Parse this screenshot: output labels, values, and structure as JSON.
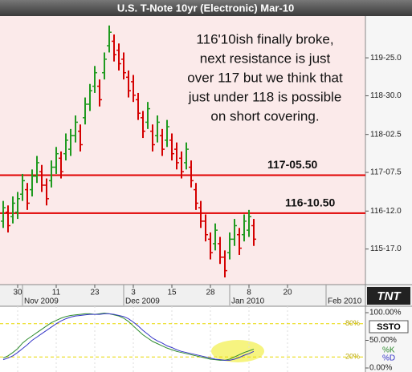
{
  "chart_data": [
    {
      "type": "ohlc",
      "title": "U.S. T-Note 10yr (Electronic) Mar-10",
      "x": [
        "2009-10-27",
        "2009-10-28",
        "2009-10-29",
        "2009-10-30",
        "2009-11-02",
        "2009-11-03",
        "2009-11-04",
        "2009-11-05",
        "2009-11-06",
        "2009-11-09",
        "2009-11-10",
        "2009-11-11",
        "2009-11-12",
        "2009-11-13",
        "2009-11-16",
        "2009-11-17",
        "2009-11-18",
        "2009-11-19",
        "2009-11-20",
        "2009-11-23",
        "2009-11-24",
        "2009-11-25",
        "2009-11-26",
        "2009-11-27",
        "2009-11-30",
        "2009-12-01",
        "2009-12-02",
        "2009-12-03",
        "2009-12-04",
        "2009-12-07",
        "2009-12-08",
        "2009-12-09",
        "2009-12-10",
        "2009-12-11",
        "2009-12-14",
        "2009-12-15",
        "2009-12-16",
        "2009-12-17",
        "2009-12-18",
        "2009-12-21",
        "2009-12-22",
        "2009-12-23",
        "2009-12-24",
        "2009-12-28",
        "2009-12-29",
        "2009-12-30",
        "2009-12-31",
        "2010-01-04",
        "2010-01-05",
        "2010-01-06",
        "2010-01-07",
        "2010-01-08",
        "2010-01-11"
      ],
      "open": [
        116.15,
        116.35,
        116.25,
        116.35,
        116.75,
        116.85,
        116.85,
        117.15,
        117.25,
        116.95,
        117.05,
        117.35,
        117.55,
        117.65,
        117.75,
        118.05,
        118.15,
        118.45,
        118.75,
        119.15,
        119.15,
        119.45,
        120.05,
        120.15,
        119.95,
        119.75,
        119.35,
        119.25,
        118.85,
        118.45,
        118.35,
        118.15,
        118.05,
        118.05,
        117.95,
        117.95,
        117.75,
        117.55,
        117.45,
        117.35,
        116.85,
        116.45,
        116.15,
        115.75,
        115.65,
        115.65,
        115.35,
        115.45,
        115.75,
        115.85,
        115.85,
        115.95,
        116.05
      ],
      "high": [
        116.6,
        116.5,
        116.7,
        116.8,
        117.2,
        117.0,
        117.3,
        117.6,
        117.4,
        117.1,
        117.5,
        117.8,
        117.7,
        118.1,
        118.2,
        118.5,
        118.3,
        118.9,
        119.2,
        119.6,
        119.3,
        119.9,
        120.5,
        120.3,
        120.1,
        119.9,
        119.5,
        119.4,
        119.0,
        118.6,
        118.8,
        118.3,
        118.5,
        118.2,
        118.4,
        118.1,
        117.9,
        117.7,
        117.9,
        117.5,
        117.0,
        116.6,
        116.3,
        115.9,
        116.1,
        115.8,
        115.5,
        115.9,
        116.2,
        116.0,
        116.3,
        116.4,
        116.2
      ],
      "low": [
        116.0,
        115.9,
        116.1,
        116.2,
        116.6,
        116.4,
        116.7,
        117.0,
        116.8,
        116.5,
        116.9,
        117.2,
        117.1,
        117.5,
        117.6,
        117.9,
        117.7,
        118.3,
        118.6,
        119.0,
        118.7,
        119.3,
        119.9,
        119.7,
        119.5,
        119.3,
        118.9,
        118.8,
        118.4,
        118.0,
        118.2,
        117.7,
        117.9,
        117.6,
        117.8,
        117.5,
        117.3,
        117.1,
        117.3,
        116.9,
        116.4,
        116.0,
        115.7,
        115.3,
        115.5,
        115.2,
        114.9,
        115.3,
        115.6,
        115.4,
        115.7,
        115.8,
        115.6
      ],
      "close": [
        116.45,
        116.05,
        116.55,
        116.65,
        117.05,
        116.55,
        117.15,
        117.45,
        116.95,
        116.65,
        117.35,
        117.65,
        117.25,
        117.95,
        118.05,
        118.35,
        117.85,
        118.75,
        119.05,
        119.45,
        118.85,
        119.75,
        120.35,
        119.85,
        119.65,
        119.45,
        119.05,
        118.95,
        118.55,
        118.15,
        118.65,
        117.85,
        118.35,
        117.75,
        118.25,
        117.65,
        117.45,
        117.25,
        117.75,
        117.05,
        116.55,
        116.15,
        115.85,
        115.45,
        115.95,
        115.35,
        115.05,
        115.75,
        116.05,
        115.55,
        116.15,
        116.25,
        115.75
      ],
      "up_color": "#1f9a1f",
      "down_color": "#d40000",
      "ylim": [
        114.74,
        120.71
      ],
      "yticks": [
        {
          "value": 119.78125,
          "label": "119-25.0"
        },
        {
          "value": 118.9375,
          "label": "118-30.0"
        },
        {
          "value": 118.078125,
          "label": "118-02.5"
        },
        {
          "value": 117.234375,
          "label": "117-07.5"
        },
        {
          "value": 116.375,
          "label": "116-12.0"
        },
        {
          "value": 115.53125,
          "label": "115-17.0"
        }
      ],
      "xticks": [
        {
          "value": "2009-10-30",
          "label": "30"
        },
        {
          "value": "2009-11-11",
          "label": "11"
        },
        {
          "value": "2009-11-23",
          "label": "23"
        },
        {
          "value": "2009-12-03",
          "label": "3"
        },
        {
          "value": "2009-12-15",
          "label": "15"
        },
        {
          "value": "2009-12-28",
          "label": "28"
        },
        {
          "value": "2010-01-08",
          "label": "8"
        },
        {
          "value": "2010-01-20",
          "label": "20"
        }
      ],
      "month_labels": [
        {
          "value": "2009-11-02",
          "label": "Nov 2009"
        },
        {
          "value": "2009-12-01",
          "label": "Dec 2009"
        },
        {
          "value": "2010-01-04",
          "label": "Jan 2010"
        },
        {
          "value": "2010-02-01",
          "label": "Feb 2010"
        }
      ],
      "reference_lines": [
        {
          "value": 117.171875,
          "label": "117-05.50"
        },
        {
          "value": 116.328125,
          "label": "116-10.50"
        }
      ],
      "reference_color": "#e00000",
      "annotation": [
        "116'10ish finally broke,",
        "next resistance is just",
        "over 117 but we think that",
        "just under 118 is possible",
        "on short covering."
      ],
      "logo": "TNT"
    },
    {
      "type": "line",
      "title": "SSTO",
      "series": [
        {
          "name": "%K",
          "color": "#2e8b2e",
          "values": [
            18,
            22,
            28,
            35,
            45,
            52,
            58,
            64,
            70,
            76,
            82,
            86,
            90,
            93,
            95,
            96,
            97,
            98,
            98,
            97,
            98,
            99,
            98,
            96,
            94,
            90,
            84,
            76,
            68,
            60,
            54,
            48,
            44,
            40,
            36,
            33,
            30,
            28,
            26,
            24,
            22,
            20,
            18,
            16,
            15,
            14,
            14,
            16,
            20,
            24,
            28,
            31,
            34
          ]
        },
        {
          "name": "%D",
          "color": "#3535c8",
          "values": [
            15,
            18,
            22,
            28,
            35,
            42,
            50,
            56,
            62,
            68,
            74,
            80,
            85,
            89,
            92,
            94,
            95,
            96,
            97,
            97,
            97,
            98,
            98,
            97,
            95,
            93,
            89,
            83,
            76,
            68,
            61,
            54,
            49,
            45,
            40,
            37,
            33,
            30,
            28,
            26,
            24,
            22,
            20,
            18,
            16,
            15,
            14,
            14,
            16,
            19,
            23,
            26,
            30
          ]
        }
      ],
      "ylim": [
        0,
        100
      ],
      "yticks": [
        {
          "value": 100,
          "label": "100.00%"
        },
        {
          "value": 50,
          "label": "50.00%"
        },
        {
          "value": 0,
          "label": "0.00%"
        }
      ],
      "levels": [
        {
          "value": 80,
          "label": "80%"
        },
        {
          "value": 20,
          "label": "20%"
        }
      ],
      "level_color": "#e8d800"
    }
  ]
}
